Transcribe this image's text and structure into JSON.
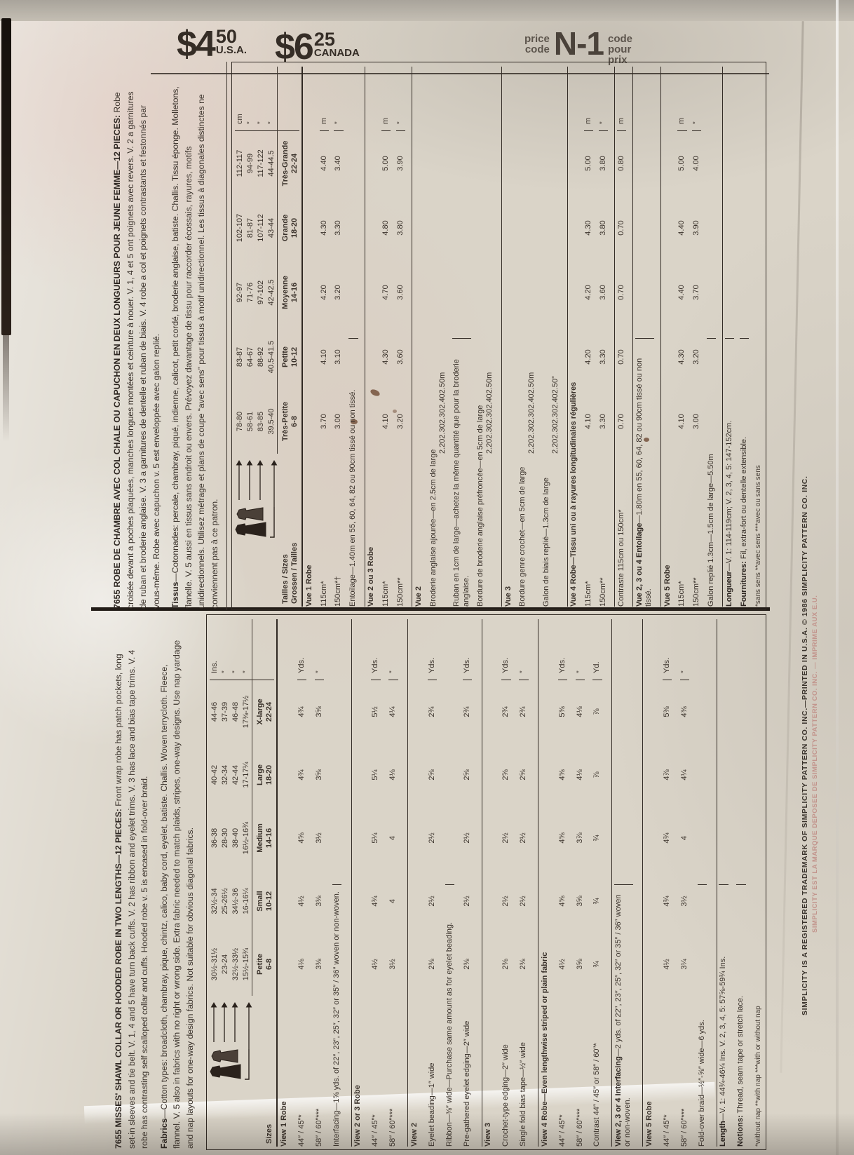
{
  "colors": {
    "paper": "#dad4c8",
    "ink": "#3a322b",
    "bold_ink": "#2c2520",
    "faded_red": "#c2948c",
    "bar_black": "#221c17"
  },
  "header": {
    "usa": {
      "amount": "$4",
      "cents": "50",
      "region": "U.S.A."
    },
    "canada": {
      "amount": "$6",
      "cents": "25",
      "region": "CANADA"
    },
    "code": {
      "left1": "price",
      "left2": "code",
      "value": "N-1",
      "right1": "code",
      "right2": "pour",
      "right3": "prix"
    }
  },
  "french": {
    "intro_bold": "7655 ROBE DE CHAMBRE AVEC COL CHALE OU CAPUCHON EN DEUX LONGUEURS POUR JEUNE FEMME—12 PIECES:",
    "intro_text": " Robe croisée devant a poches plaquées, manches longues montées et ceinture à nouer. V. 1, 4 et 5 ont poignets avec revers. V. 2 a garnitures de ruban et broderie anglaise. V. 3 a garnitures de dentelle et ruban de biais. V. 4 robe a col et poignets contrastants et festonnés par vous-même. Robe avec capuchon v. 5 est enveloppée avec galon replié.",
    "fabrics_bold": "Tissus",
    "fabrics_text": "—Cotonnades: percale, chambray, piqué, indienne, calicot, petit cordé, broderie anglaise, batiste. Challis. Tissu éponge. Molletons, flanelle. V. 5 aussi en tissus sans endroit ou envers. Prévoyez davantage de tissu pour raccorder écossais, rayures, motifs unidirectionnels. Utilisez métrage et plans de coupe “avec sens” pour tissus à motif unidirectionnel. Les tissus à diagonales distinctes ne conviennent pas à ce patron.",
    "chart": {
      "sizes_label": [
        "Tailles / Sizes",
        "Grossen / Tailles"
      ],
      "size_names": [
        "Très-Petite",
        "Petite",
        "Moyenne",
        "Grande",
        "Très-Grande"
      ],
      "size_ranges": [
        "6-8",
        "10-12",
        "14-16",
        "18-20",
        "22-24"
      ],
      "meas_units": [
        "cm",
        "”",
        "”",
        "”"
      ],
      "measurements": [
        [
          "78-80",
          "83-87",
          "92-97",
          "102-107",
          "112-117"
        ],
        [
          "58-61",
          "64-67",
          "71-76",
          "81-87",
          "94-99"
        ],
        [
          "83-85",
          "88-92",
          "97-102",
          "107-112",
          "117-122"
        ],
        [
          "39.5-40",
          "40.5-41.5",
          "42-42.5",
          "43-44",
          "44-44.5"
        ]
      ],
      "rows": [
        {
          "t": "section",
          "label": "Vue 1 Robe"
        },
        {
          "t": "values",
          "label": "115cm*",
          "values": [
            "3.70",
            "4.10",
            "4.20",
            "4.30",
            "4.40"
          ],
          "unit": "m"
        },
        {
          "t": "values",
          "label": "150cm*†",
          "values": [
            "3.00",
            "3.10",
            "3.20",
            "3.30",
            "3.40"
          ],
          "unit": "”"
        },
        {
          "t": "text",
          "label": "Entoilage—1.40m en 55, 60, 64, 82 ou 90cm tissé ou non tissé."
        },
        {
          "t": "section",
          "label": "Vue 2 ou 3 Robe",
          "rule": true
        },
        {
          "t": "values",
          "label": "115cm*",
          "values": [
            "4.10",
            "4.30",
            "4.70",
            "4.80",
            "5.00"
          ],
          "unit": "m"
        },
        {
          "t": "values",
          "label": "150cm**",
          "values": [
            "3.20",
            "3.60",
            "3.60",
            "3.80",
            "3.90"
          ],
          "unit": "”"
        },
        {
          "t": "section",
          "label": "Vue 2",
          "rule": true
        },
        {
          "t": "values",
          "label": "Broderie anglaise ajourée—en 2.5cm de large",
          "values": [
            "2.20",
            "2.30",
            "2.30",
            "2.40",
            "2.50"
          ],
          "unit": "m",
          "wide": true
        },
        {
          "t": "text",
          "label": "Ruban en 1cm de large—achetez la même quantité que pour la broderie anglaise."
        },
        {
          "t": "values",
          "label": "Bordure de broderie anglaise préfroncée—en 5cm de large",
          "values": [
            "2.20",
            "2.30",
            "2.30",
            "2.40",
            "2.50"
          ],
          "unit": "m",
          "wide": true
        },
        {
          "t": "section",
          "label": "Vue 3",
          "rule": true
        },
        {
          "t": "values",
          "label": "Bordure genre crochet—en 5cm de large",
          "values": [
            "2.20",
            "2.30",
            "2.30",
            "2.40",
            "2.50"
          ],
          "unit": "m",
          "wide": true
        },
        {
          "t": "values",
          "label": "Galon de biais replié—1.3cm de large",
          "values": [
            "2.20",
            "2.30",
            "2.30",
            "2.40",
            "2.50"
          ],
          "unit": "”",
          "wide": true
        },
        {
          "t": "section",
          "label": "Vue 4 Robe—Tissu uni ou à rayures longitudinales régulières",
          "rule": true
        },
        {
          "t": "values",
          "label": "115cm*",
          "values": [
            "4.10",
            "4.20",
            "4.20",
            "4.30",
            "5.00"
          ],
          "unit": "m"
        },
        {
          "t": "values",
          "label": "150cm**",
          "values": [
            "3.30",
            "3.30",
            "3.60",
            "3.80",
            "3.80"
          ],
          "unit": "”"
        },
        {
          "t": "values",
          "label": "Contraste 115cm ou 150cm*",
          "values": [
            "0.70",
            "0.70",
            "0.70",
            "0.70",
            "0.80"
          ],
          "unit": "m",
          "rule": true
        },
        {
          "t": "text",
          "lead": "Vue 2, 3 ou 4 Entoilage",
          "label": "—1.80m en 55, 60, 64, 82 ou 90cm tissé ou non tissé.",
          "rule": true
        },
        {
          "t": "section",
          "label": "Vue 5 Robe",
          "rule": true
        },
        {
          "t": "values",
          "label": "115cm*",
          "values": [
            "4.10",
            "4.30",
            "4.40",
            "4.40",
            "5.00"
          ],
          "unit": "m"
        },
        {
          "t": "values",
          "label": "150cm**",
          "values": [
            "3.00",
            "3.20",
            "3.70",
            "3.90",
            "4.00"
          ],
          "unit": "”"
        },
        {
          "t": "text",
          "label": "Galon replié 1.3cm—1.5cm de large—5.50m"
        },
        {
          "t": "text",
          "lead": "Longueur",
          "label": "—V. 1: 114-119cm; V. 2, 3, 4, 5: 147-152cm.",
          "rule": true
        },
        {
          "t": "text",
          "lead": "Fournitures:",
          "label": " Fil, extra-fort ou dentelle extensible."
        },
        {
          "t": "foot",
          "label": "*sans sens   **avec sens   ***avec ou sans sens"
        }
      ]
    }
  },
  "english": {
    "intro_bold": "7655 MISSES' SHAWL COLLAR OR HOODED ROBE IN TWO LENGTHS—12 PIECES:",
    "intro_text": " Front wrap robe has patch pockets, long set-in sleeves and tie belt. V. 1, 4 and 5 have turn back cuffs. V. 2 has ribbon and eyelet trims. V. 3 has lace and bias tape trims. V. 4 robe has contrasting self scalloped collar and cuffs. Hooded robe v. 5 is encased in fold-over braid.",
    "fabrics_bold": "Fabrics",
    "fabrics_text": "—Cotton types: broadcloth, chambray, pique, chintz, calico, baby cord, eyelet, batiste. Challis. Woven terrycloth. Fleece, flannel. V. 5 also in fabrics with no right or wrong side. Extra fabric needed to match plaids, stripes, one-way designs. Use nap yardage and nap layouts for one-way design fabrics. Not suitable for obvious diagonal fabrics.",
    "chart": {
      "sizes_label": [
        "Sizes"
      ],
      "size_names": [
        "Petite",
        "Small",
        "Medium",
        "Large",
        "X-large"
      ],
      "size_ranges": [
        "6-8",
        "10-12",
        "14-16",
        "18-20",
        "22-24"
      ],
      "meas_units": [
        "Ins.",
        "”",
        "”",
        "”"
      ],
      "measurements": [
        [
          "30½-31½",
          "32½-34",
          "36-38",
          "40-42",
          "44-46"
        ],
        [
          "23-24",
          "25-26½",
          "28-30",
          "32-34",
          "37-39"
        ],
        [
          "32½-33½",
          "34½-36",
          "38-40",
          "42-44",
          "46-48"
        ],
        [
          "15½-15¾",
          "16-16¼",
          "16½-16¾",
          "17-17¼",
          "17⅜-17½"
        ]
      ],
      "rows": [
        {
          "t": "section",
          "label": "View 1 Robe"
        },
        {
          "t": "values",
          "label": "44″ / 45″*",
          "values": [
            "4⅛",
            "4½",
            "4⅝",
            "4¾",
            "4¾"
          ],
          "unit": "Yds."
        },
        {
          "t": "values",
          "label": "58″ / 60″***",
          "values": [
            "3⅜",
            "3⅜",
            "3½",
            "3⅝",
            "3⅝"
          ],
          "unit": "”"
        },
        {
          "t": "text",
          "label": "Interfacing—1⅝ yds. of 22″, 23″, 25″, 32″ or 35″ / 36″ woven or non-woven."
        },
        {
          "t": "section",
          "label": "View 2 or 3 Robe",
          "rule": true
        },
        {
          "t": "values",
          "label": "44″ / 45″*",
          "values": [
            "4½",
            "4¾",
            "5¼",
            "5¼",
            "5½"
          ],
          "unit": "Yds."
        },
        {
          "t": "values",
          "label": "58″ / 60″***",
          "values": [
            "3½",
            "4",
            "4",
            "4⅛",
            "4¼"
          ],
          "unit": "”"
        },
        {
          "t": "section",
          "label": "View 2",
          "rule": true
        },
        {
          "t": "values",
          "label": "Eyelet beading—1″ wide",
          "values": [
            "2⅜",
            "2½",
            "2½",
            "2⅝",
            "2¾"
          ],
          "unit": "Yds."
        },
        {
          "t": "text",
          "label": "Ribbon—⅜″ wide—Purchase same amount as for eyelet beading."
        },
        {
          "t": "values",
          "label": "Pre-gathered eyelet edging—2″ wide",
          "values": [
            "2⅜",
            "2½",
            "2½",
            "2⅝",
            "2¾"
          ],
          "unit": "Yds."
        },
        {
          "t": "section",
          "label": "View 3",
          "rule": true
        },
        {
          "t": "values",
          "label": "Crochet-type edging—2″ wide",
          "values": [
            "2⅜",
            "2½",
            "2½",
            "2⅝",
            "2¾"
          ],
          "unit": "Yds."
        },
        {
          "t": "values",
          "label": "Single fold bias tape—½″ wide",
          "values": [
            "2⅜",
            "2½",
            "2½",
            "2⅝",
            "2¾"
          ],
          "unit": "”"
        },
        {
          "t": "section",
          "label": "View 4 Robe—Even lengthwise striped or plain fabric",
          "rule": true
        },
        {
          "t": "values",
          "label": "44″ / 45″*",
          "values": [
            "4½",
            "4⅝",
            "4⅝",
            "4⅝",
            "5⅜"
          ],
          "unit": "Yds."
        },
        {
          "t": "values",
          "label": "58″ / 60″***",
          "values": [
            "3⅝",
            "3⅝",
            "3⅞",
            "4⅛",
            "4⅛"
          ],
          "unit": "”"
        },
        {
          "t": "values",
          "label": "Contrast 44″ / 45″ or 58″ / 60″*",
          "values": [
            "¾",
            "¾",
            "¾",
            "⅞",
            "⅞"
          ],
          "unit": "Yd."
        },
        {
          "t": "text",
          "lead": "View 2, 3 or 4 Interfacing",
          "label": "—2 yds. of 22″, 23″, 25″, 32″ or 35″ / 36″ woven or non-woven.",
          "rule": true
        },
        {
          "t": "section",
          "label": "View 5 Robe",
          "rule": true
        },
        {
          "t": "values",
          "label": "44″ / 45″*",
          "values": [
            "4½",
            "4¾",
            "4¾",
            "4⅞",
            "5⅜"
          ],
          "unit": "Yds."
        },
        {
          "t": "values",
          "label": "58″ / 60″***",
          "values": [
            "3¼",
            "3½",
            "4",
            "4¼",
            "4⅜"
          ],
          "unit": "”"
        },
        {
          "t": "text",
          "label": "Fold-over braid—½″-⅝″ wide—6 yds."
        },
        {
          "t": "text",
          "lead": "Length",
          "label": "—V. 1: 44¾-46¼ Ins. V. 2, 3, 4, 5: 57⅝-59¾ Ins.",
          "rule": true
        },
        {
          "t": "text",
          "lead": "Notions:",
          "label": " Thread, seam tape or stretch lace."
        },
        {
          "t": "foot",
          "label": "*without nap   **with nap   ***with or without nap"
        }
      ]
    }
  },
  "trademark": {
    "line1": "SIMPLICITY IS A REGISTERED TRADEMARK OF SIMPLICITY PATTERN CO. INC.—PRINTED IN U.S.A. © 1986 SIMPLICITY PATTERN CO. INC.",
    "line2": "SIMPLICITY EST LA MARQUE DEPOSEE DE SIMPLICITY PATTERN CO. INC. — IMPRIME AUX E.U."
  }
}
